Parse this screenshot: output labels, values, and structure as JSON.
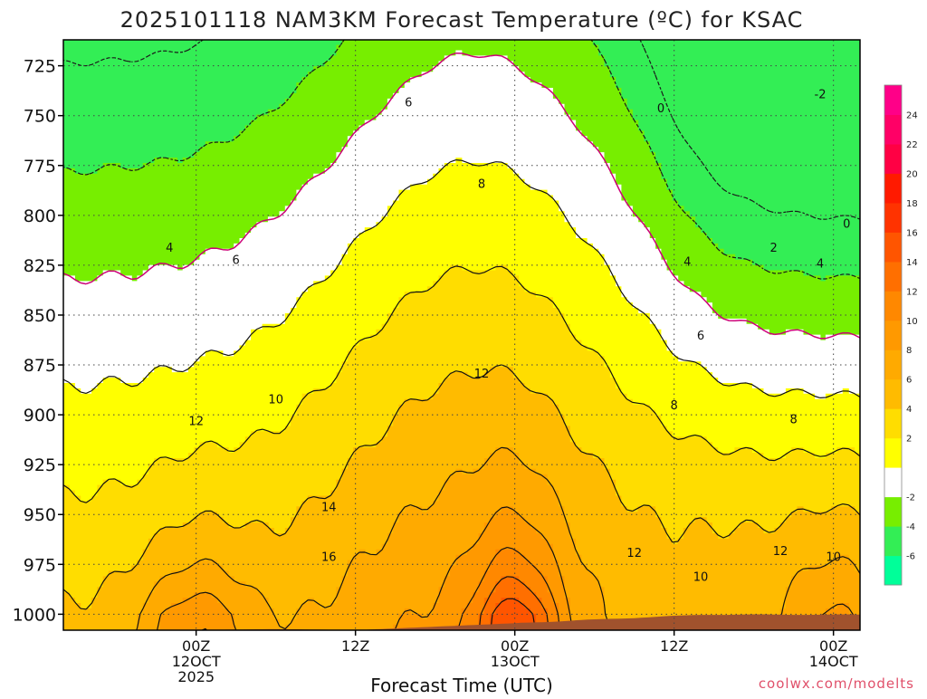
{
  "chart_data": {
    "type": "heatmap",
    "title": "2025101118 NAM3KM Forecast Temperature (ºC) for KSAC",
    "xlabel": "Forecast Time (UTC)",
    "ylabel": "",
    "credit": "coolwx.com/modelts",
    "y_axis": {
      "ylim": [
        1008,
        712
      ],
      "direction": "pressure decreasing upward",
      "ticks": [
        725,
        750,
        775,
        800,
        825,
        850,
        875,
        900,
        925,
        950,
        975,
        1000
      ],
      "tick_labels": [
        "725",
        "750",
        "775",
        "800",
        "825",
        "850",
        "875",
        "900",
        "925",
        "950",
        "975",
        "1000"
      ]
    },
    "x_axis": {
      "xlim_hours": [
        -10,
        50
      ],
      "ticks": [
        {
          "hour": 0,
          "lines": [
            "00Z",
            "12OCT",
            "2025"
          ]
        },
        {
          "hour": 12,
          "lines": [
            "12Z"
          ]
        },
        {
          "hour": 24,
          "lines": [
            "00Z",
            "13OCT"
          ]
        },
        {
          "hour": 36,
          "lines": [
            "12Z"
          ]
        },
        {
          "hour": 48,
          "lines": [
            "00Z",
            "14OCT"
          ]
        }
      ]
    },
    "colorbar": {
      "levels": [
        -8,
        -6,
        -4,
        -2,
        0,
        2,
        4,
        6,
        8,
        10,
        12,
        14,
        16,
        18,
        20,
        22,
        24,
        26
      ],
      "labels": [
        "-6",
        "-4",
        "-2",
        "2",
        "4",
        "6",
        "8",
        "10",
        "12",
        "14",
        "16",
        "18",
        "20",
        "22",
        "24"
      ],
      "colors": [
        "#00ff99",
        "#33ee55",
        "#77ee00",
        "#ffffff",
        "#ffff00",
        "#ffdd00",
        "#ffbb00",
        "#ffaa00",
        "#ff9900",
        "#ff8800",
        "#ff6f00",
        "#ff5500",
        "#ff3300",
        "#ff1a00",
        "#ff0044",
        "#ff0066",
        "#ff0088"
      ]
    },
    "fill_levels": [
      -4,
      -2,
      0,
      2,
      4,
      6,
      8,
      10,
      12,
      14,
      16,
      18,
      20,
      22
    ],
    "fill_colors": [
      "#33ee55",
      "#77ee00",
      "#ffffff",
      "#ffff00",
      "#ffdd00",
      "#ffbb00",
      "#ffaa00",
      "#ff9900",
      "#ff8800",
      "#ff6f00",
      "#ff5500",
      "#ff3300",
      "#ff1a00",
      "#ff0066"
    ],
    "ground_color": "#a0522d",
    "contour_labels": [
      {
        "text": "-2",
        "hour": 47.0,
        "p": 739
      },
      {
        "text": "0",
        "hour": 35.0,
        "p": 746
      },
      {
        "text": "0",
        "hour": 49.0,
        "p": 804
      },
      {
        "text": "2",
        "hour": 43.5,
        "p": 816
      },
      {
        "text": "4",
        "hour": -2.0,
        "p": 816
      },
      {
        "text": "4",
        "hour": 37.0,
        "p": 823
      },
      {
        "text": "4",
        "hour": 47.0,
        "p": 824
      },
      {
        "text": "6",
        "hour": 16.0,
        "p": 743
      },
      {
        "text": "6",
        "hour": 3.0,
        "p": 822
      },
      {
        "text": "6",
        "hour": 38.0,
        "p": 860
      },
      {
        "text": "8",
        "hour": 21.5,
        "p": 784
      },
      {
        "text": "8",
        "hour": 36.0,
        "p": 895
      },
      {
        "text": "8",
        "hour": 45.0,
        "p": 902
      },
      {
        "text": "10",
        "hour": 6.0,
        "p": 892
      },
      {
        "text": "10",
        "hour": 38.0,
        "p": 981
      },
      {
        "text": "10",
        "hour": 48.0,
        "p": 971
      },
      {
        "text": "12",
        "hour": 0.0,
        "p": 903
      },
      {
        "text": "12",
        "hour": 21.5,
        "p": 879
      },
      {
        "text": "12",
        "hour": 44.0,
        "p": 968
      },
      {
        "text": "12",
        "hour": 33.0,
        "p": 969
      },
      {
        "text": "14",
        "hour": 10.0,
        "p": 946
      },
      {
        "text": "16",
        "hour": 10.0,
        "p": 971
      }
    ]
  }
}
